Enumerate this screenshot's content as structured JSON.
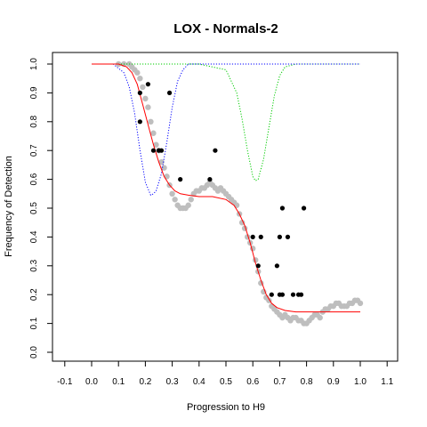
{
  "chart_data": {
    "type": "scatter",
    "title": "LOX - Normals-2",
    "xlabel": "Progression to H9",
    "ylabel": "Frequency of Detection",
    "xlim": [
      -0.1,
      1.1
    ],
    "ylim": [
      0.0,
      1.0
    ],
    "x_ticks": [
      "-0.1",
      "0.0",
      "0.1",
      "0.2",
      "0.3",
      "0.4",
      "0.5",
      "0.6",
      "0.7",
      "0.8",
      "0.9",
      "1.0",
      "1.1"
    ],
    "y_ticks": [
      "0.0",
      "0.1",
      "0.2",
      "0.3",
      "0.4",
      "0.5",
      "0.6",
      "0.7",
      "0.8",
      "0.9",
      "1.0"
    ],
    "grid": false,
    "colors": {
      "observed": "#000000",
      "smoothed": "#bebebe",
      "fit": "#ff0000",
      "blue_dip": "#0000ff",
      "green_dip": "#00cc00"
    },
    "series": [
      {
        "kind": "observed",
        "color": "#000000",
        "x": [
          0.18,
          0.18,
          0.21,
          0.23,
          0.25,
          0.26,
          0.29,
          0.33,
          0.44,
          0.46,
          0.6,
          0.62,
          0.63,
          0.67,
          0.69,
          0.7,
          0.7,
          0.71,
          0.71,
          0.73,
          0.75,
          0.77,
          0.78,
          0.79
        ],
        "y": [
          0.9,
          0.8,
          0.93,
          0.7,
          0.7,
          0.7,
          0.9,
          0.6,
          0.6,
          0.7,
          0.4,
          0.3,
          0.4,
          0.2,
          0.3,
          0.2,
          0.4,
          0.5,
          0.2,
          0.4,
          0.2,
          0.2,
          0.2,
          0.5
        ]
      },
      {
        "kind": "smoothed",
        "color": "#bebebe",
        "x": [
          0.1,
          0.12,
          0.14,
          0.15,
          0.16,
          0.17,
          0.18,
          0.19,
          0.2,
          0.21,
          0.22,
          0.23,
          0.24,
          0.25,
          0.26,
          0.27,
          0.28,
          0.29,
          0.3,
          0.31,
          0.32,
          0.33,
          0.34,
          0.35,
          0.36,
          0.37,
          0.38,
          0.39,
          0.4,
          0.41,
          0.42,
          0.43,
          0.44,
          0.45,
          0.46,
          0.47,
          0.48,
          0.49,
          0.5,
          0.51,
          0.52,
          0.53,
          0.54,
          0.55,
          0.56,
          0.57,
          0.58,
          0.59,
          0.6,
          0.61,
          0.62,
          0.63,
          0.64,
          0.65,
          0.66,
          0.67,
          0.68,
          0.69,
          0.7,
          0.71,
          0.72,
          0.73,
          0.74,
          0.75,
          0.76,
          0.77,
          0.78,
          0.79,
          0.8,
          0.81,
          0.82,
          0.83,
          0.84,
          0.85,
          0.86,
          0.87,
          0.88,
          0.89,
          0.9,
          0.91,
          0.92,
          0.93,
          0.94,
          0.95,
          0.96,
          0.97,
          0.98,
          0.99,
          1.0
        ],
        "y": [
          1.0,
          1.0,
          1.0,
          0.99,
          0.98,
          0.97,
          0.95,
          0.92,
          0.88,
          0.85,
          0.8,
          0.76,
          0.72,
          0.7,
          0.66,
          0.64,
          0.61,
          0.58,
          0.55,
          0.53,
          0.51,
          0.5,
          0.5,
          0.5,
          0.51,
          0.53,
          0.55,
          0.56,
          0.56,
          0.57,
          0.57,
          0.58,
          0.59,
          0.58,
          0.57,
          0.56,
          0.57,
          0.56,
          0.55,
          0.54,
          0.53,
          0.52,
          0.51,
          0.48,
          0.45,
          0.43,
          0.4,
          0.38,
          0.36,
          0.32,
          0.28,
          0.24,
          0.21,
          0.19,
          0.18,
          0.16,
          0.15,
          0.14,
          0.13,
          0.12,
          0.13,
          0.12,
          0.11,
          0.12,
          0.12,
          0.11,
          0.11,
          0.1,
          0.1,
          0.11,
          0.12,
          0.13,
          0.13,
          0.12,
          0.14,
          0.15,
          0.15,
          0.16,
          0.16,
          0.17,
          0.17,
          0.16,
          0.16,
          0.16,
          0.17,
          0.17,
          0.18,
          0.18,
          0.17
        ]
      },
      {
        "kind": "fit",
        "color": "#ff0000",
        "x": [
          0.0,
          0.1,
          0.13,
          0.15,
          0.17,
          0.19,
          0.21,
          0.23,
          0.25,
          0.27,
          0.29,
          0.31,
          0.33,
          0.36,
          0.4,
          0.45,
          0.5,
          0.53,
          0.55,
          0.57,
          0.59,
          0.61,
          0.63,
          0.65,
          0.67,
          0.69,
          0.72,
          0.76,
          0.8,
          0.9,
          1.0
        ],
        "y": [
          1.0,
          1.0,
          0.99,
          0.97,
          0.93,
          0.86,
          0.79,
          0.72,
          0.66,
          0.61,
          0.58,
          0.56,
          0.55,
          0.545,
          0.54,
          0.54,
          0.53,
          0.51,
          0.48,
          0.44,
          0.38,
          0.31,
          0.25,
          0.2,
          0.17,
          0.155,
          0.145,
          0.14,
          0.14,
          0.14,
          0.14
        ]
      },
      {
        "kind": "blue_dip",
        "color": "#0000ff",
        "x": [
          0.0,
          0.08,
          0.12,
          0.14,
          0.16,
          0.18,
          0.2,
          0.22,
          0.23,
          0.24,
          0.26,
          0.28,
          0.3,
          0.32,
          0.34,
          0.36,
          0.4,
          0.5,
          1.0
        ],
        "y": [
          1.0,
          1.0,
          0.97,
          0.92,
          0.83,
          0.7,
          0.59,
          0.545,
          0.55,
          0.56,
          0.62,
          0.73,
          0.85,
          0.94,
          0.98,
          1.0,
          1.0,
          1.0,
          1.0
        ]
      },
      {
        "kind": "green_dip",
        "color": "#00cc00",
        "x": [
          0.0,
          0.4,
          0.5,
          0.54,
          0.56,
          0.58,
          0.6,
          0.61,
          0.62,
          0.64,
          0.66,
          0.68,
          0.7,
          0.72,
          0.76,
          1.0
        ],
        "y": [
          1.0,
          1.0,
          0.98,
          0.9,
          0.81,
          0.7,
          0.61,
          0.595,
          0.6,
          0.67,
          0.78,
          0.89,
          0.96,
          0.99,
          1.0,
          1.0
        ]
      }
    ]
  }
}
